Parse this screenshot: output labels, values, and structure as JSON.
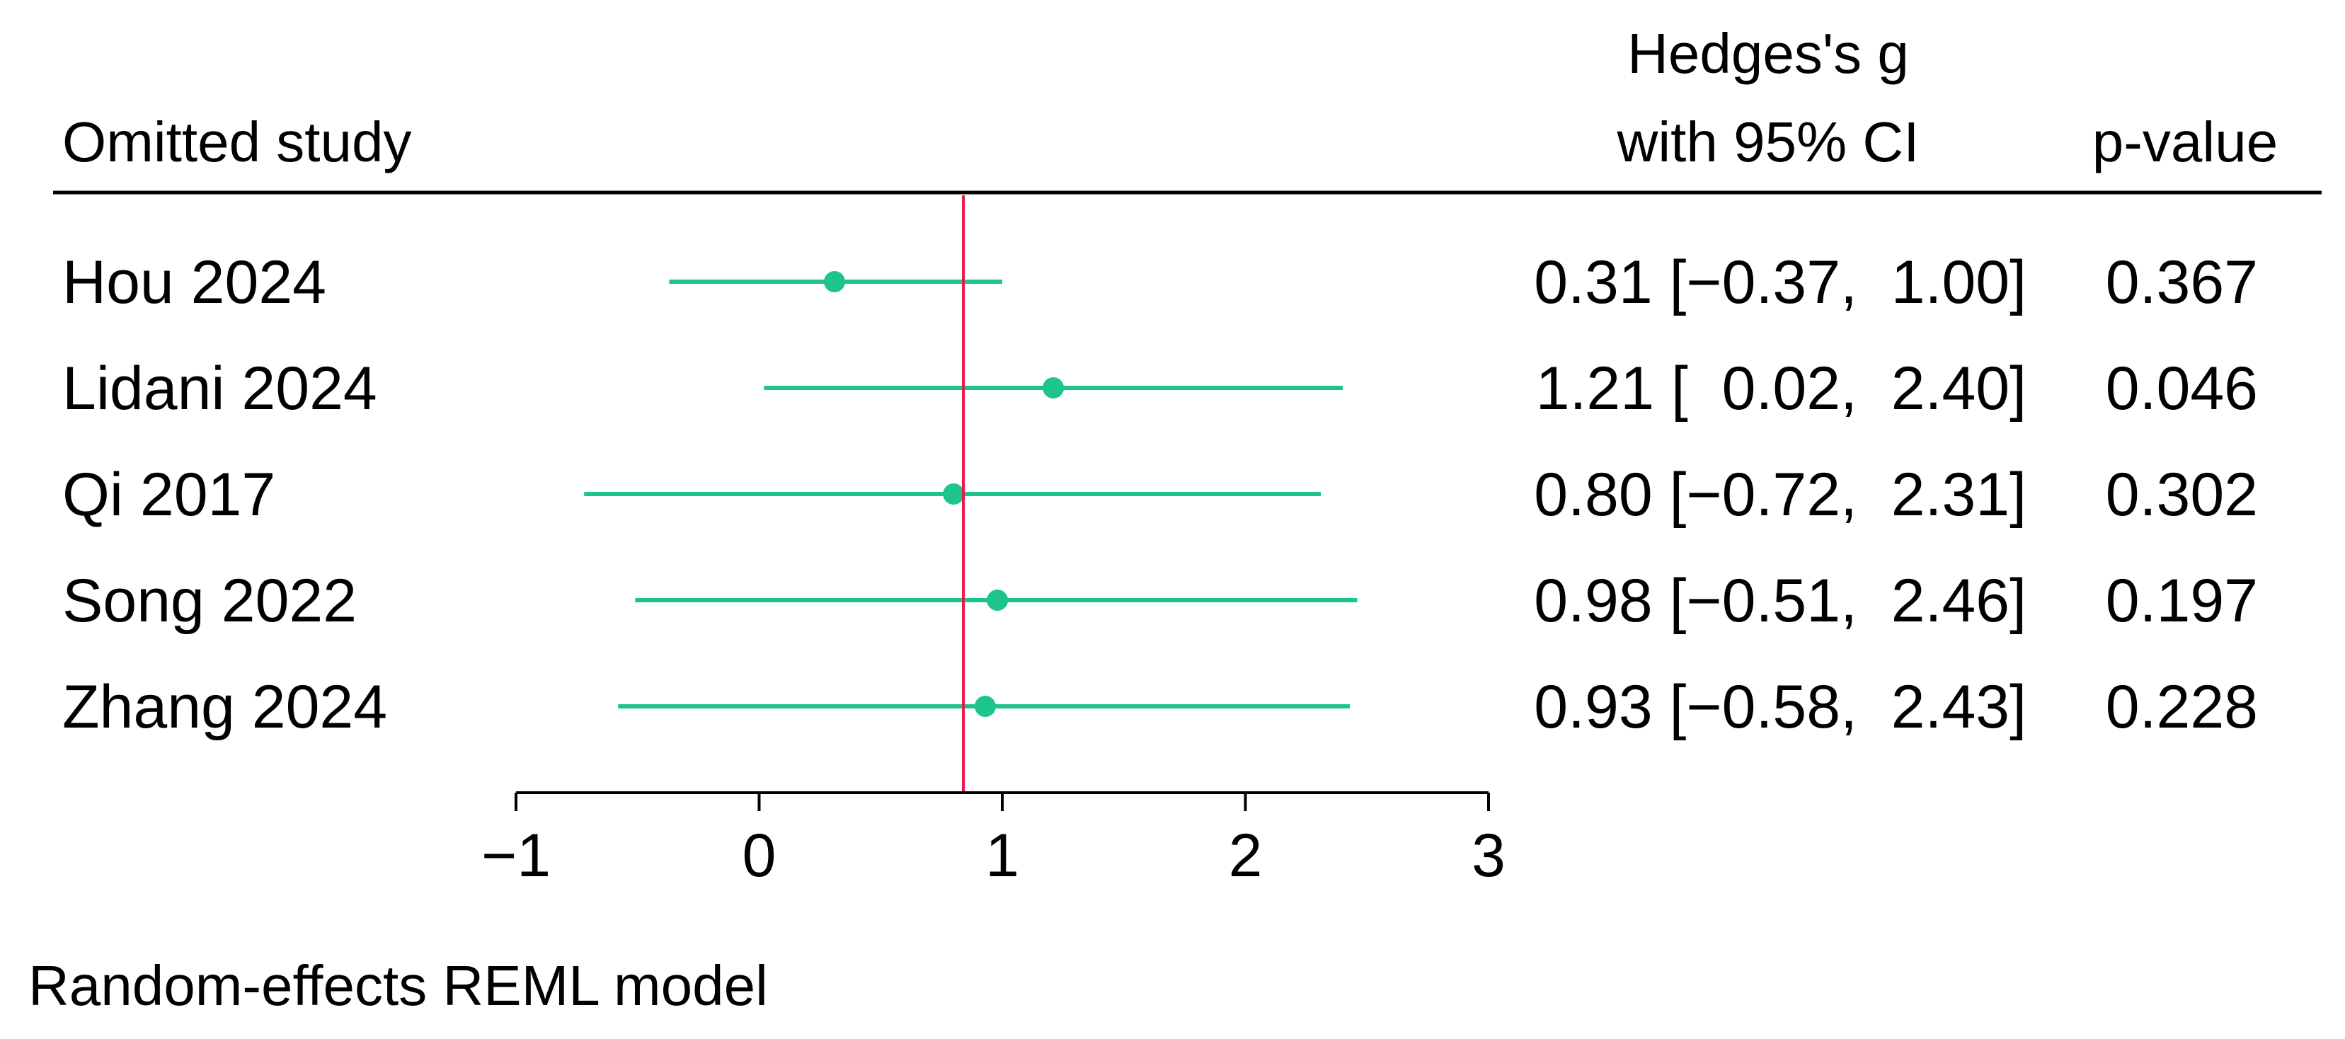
{
  "header": {
    "study_col": "Omitted study",
    "effect_col_line1": "Hedges's g",
    "effect_col_line2": "with 95% CI",
    "p_col": "p-value"
  },
  "footer": {
    "model_note": "Random-effects REML model"
  },
  "colors": {
    "marker": "#1dc58a",
    "reference_line": "#e8174a",
    "text": "#000000"
  },
  "chart_data": {
    "type": "forest",
    "xlim": [
      -1,
      3
    ],
    "xticks": [
      -1,
      0,
      1,
      2,
      3
    ],
    "xtick_labels": [
      "−1",
      "0",
      "1",
      "2",
      "3"
    ],
    "reference_line": 0.84,
    "grid": false,
    "rows": [
      {
        "study": "Hou 2024",
        "g": 0.31,
        "lower": -0.37,
        "upper": 1.0,
        "ci_text": "0.31 [−0.37,  1.00]",
        "p": "0.367"
      },
      {
        "study": "Lidani 2024",
        "g": 1.21,
        "lower": 0.02,
        "upper": 2.4,
        "ci_text": "1.21 [  0.02,  2.40]",
        "p": "0.046"
      },
      {
        "study": "Qi 2017",
        "g": 0.8,
        "lower": -0.72,
        "upper": 2.31,
        "ci_text": "0.80 [−0.72,  2.31]",
        "p": "0.302"
      },
      {
        "study": "Song 2022",
        "g": 0.98,
        "lower": -0.51,
        "upper": 2.46,
        "ci_text": "0.98 [−0.51,  2.46]",
        "p": "0.197"
      },
      {
        "study": "Zhang 2024",
        "g": 0.93,
        "lower": -0.58,
        "upper": 2.43,
        "ci_text": "0.93 [−0.58,  2.43]",
        "p": "0.228"
      }
    ]
  }
}
